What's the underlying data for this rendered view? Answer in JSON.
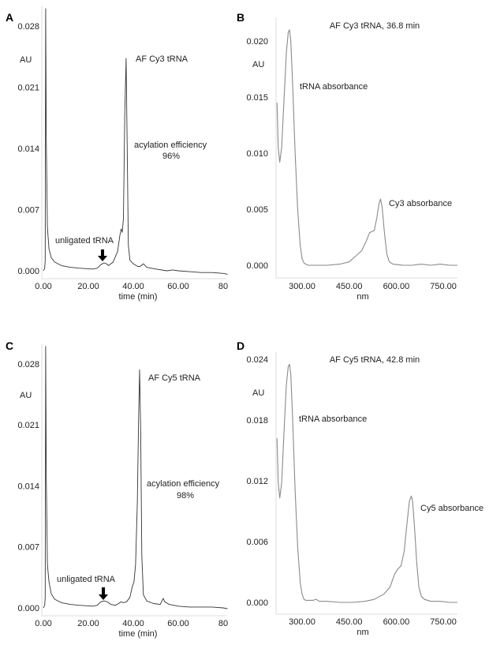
{
  "chart_data": [
    {
      "panel": "A",
      "type": "line",
      "xlabel": "time (min)",
      "ylabel": "AU",
      "xticks": [
        "0.00",
        "20.00",
        "40.00",
        "60.00",
        "80"
      ],
      "xtick_values": [
        0,
        20,
        40,
        60,
        80
      ],
      "yticks": [
        "0.000",
        "0.007",
        "0.014",
        "0.021",
        "0.028"
      ],
      "ytick_values": [
        0,
        0.007,
        0.014,
        0.021,
        0.028
      ],
      "xlim": [
        -0.7,
        81.5
      ],
      "ylim": [
        -0.001,
        0.03
      ],
      "annotations": {
        "peak": "AF Cy3 tRNA",
        "efficiency_label": "acylation efficiency",
        "efficiency_value": "96%",
        "unligated": "unligated tRNA"
      },
      "series": [
        {
          "name": "AF Cy3 tRNA chromatogram",
          "color": "#333333",
          "x": [
            0,
            0.6,
            0.8,
            1.0,
            1.3,
            1.8,
            2.5,
            3.5,
            5,
            8,
            12,
            16,
            22,
            24,
            25.5,
            27,
            28,
            29,
            31,
            33,
            34,
            34.6,
            35.1,
            35.6,
            36.2,
            36.8,
            37.3,
            37.8,
            38.5,
            40,
            42,
            43,
            44.5,
            46,
            50,
            55,
            57.5,
            60,
            65,
            70,
            75,
            80,
            82
          ],
          "y": [
            0,
            0.0003,
            0.0012,
            0.03,
            0.015,
            0.005,
            0.0025,
            0.0015,
            0.001,
            0.0006,
            0.0004,
            0.0003,
            0.0002,
            0.0003,
            0.0007,
            0.0009,
            0.0008,
            0.0006,
            0.001,
            0.0022,
            0.004,
            0.0048,
            0.0044,
            0.006,
            0.018,
            0.0243,
            0.014,
            0.003,
            0.0012,
            0.0008,
            0.0005,
            0.0005,
            0.0008,
            0.0004,
            0.0002,
            0.0,
            0.0001,
            0.0,
            -0.0001,
            -0.0002,
            -0.0002,
            -0.0003,
            -0.0004
          ]
        }
      ]
    },
    {
      "panel": "B",
      "type": "line",
      "title": "AF Cy3 tRNA, 36.8 min",
      "xlabel": "nm",
      "ylabel": "AU",
      "xticks": [
        "300.00",
        "450.00",
        "600.00",
        "750.00"
      ],
      "xtick_values": [
        300,
        450,
        600,
        750
      ],
      "yticks": [
        "0.000",
        "0.005",
        "0.010",
        "0.015",
        "0.020"
      ],
      "ytick_values": [
        0,
        0.005,
        0.01,
        0.015,
        0.02
      ],
      "xlim": [
        217,
        795
      ],
      "ylim": [
        -0.0012,
        0.022
      ],
      "annotations": {
        "uv": "tRNA absorbance",
        "dye": "Cy3 absorbance"
      },
      "series": [
        {
          "name": "AF Cy3 tRNA spectrum",
          "color": "#8a8a8a",
          "x": [
            220,
            224,
            229,
            235,
            242,
            250,
            256,
            260,
            264,
            270,
            278,
            286,
            294,
            300,
            306,
            312,
            320,
            340,
            380,
            420,
            450,
            470,
            490,
            505,
            515,
            522,
            530,
            538,
            545,
            550,
            555,
            562,
            570,
            578,
            590,
            620,
            650,
            680,
            710,
            740,
            770,
            795
          ],
          "y": [
            0.0145,
            0.0105,
            0.0092,
            0.0105,
            0.0145,
            0.019,
            0.0208,
            0.021,
            0.02,
            0.016,
            0.01,
            0.005,
            0.0018,
            0.0006,
            0.0002,
            0.0001,
            0.0,
            0.0,
            0.0,
            0.0001,
            0.0003,
            0.0008,
            0.0013,
            0.0022,
            0.0029,
            0.003,
            0.0031,
            0.0042,
            0.0055,
            0.0059,
            0.0052,
            0.003,
            0.001,
            0.0003,
            0.0001,
            0.0,
            0.0,
            0.0001,
            0.0,
            0.0001,
            0.0,
            0.0
          ]
        }
      ]
    },
    {
      "panel": "C",
      "type": "line",
      "xlabel": "time (min)",
      "ylabel": "AU",
      "xticks": [
        "0.00",
        "20.00",
        "40.00",
        "60.00",
        "80"
      ],
      "xtick_values": [
        0,
        20,
        40,
        60,
        80
      ],
      "yticks": [
        "0.000",
        "0.007",
        "0.014",
        "0.021",
        "0.028"
      ],
      "ytick_values": [
        0,
        0.007,
        0.014,
        0.021,
        0.028
      ],
      "xlim": [
        -0.7,
        81.5
      ],
      "ylim": [
        -0.001,
        0.03
      ],
      "annotations": {
        "peak": "AF Cy5 tRNA",
        "efficiency_label": "acylation efficiency",
        "efficiency_value": "98%",
        "unligated": "unligated tRNA"
      },
      "series": [
        {
          "name": "AF Cy5 tRNA chromatogram",
          "color": "#333333",
          "x": [
            0,
            0.6,
            0.8,
            1.0,
            1.3,
            1.8,
            2.5,
            3.5,
            5,
            8,
            12,
            16,
            22,
            24,
            25.5,
            27,
            28.5,
            30,
            32,
            33.5,
            34.5,
            35.5,
            37,
            38.5,
            39.5,
            40.3,
            41,
            41.8,
            42.4,
            42.8,
            43.3,
            43.8,
            44.5,
            46,
            49,
            52,
            53.3,
            54,
            56,
            60,
            65,
            70,
            75,
            80,
            82
          ],
          "y": [
            0,
            0.0003,
            0.0012,
            0.03,
            0.015,
            0.005,
            0.003,
            0.0016,
            0.001,
            0.0006,
            0.0004,
            0.0003,
            0.0002,
            0.0003,
            0.0007,
            0.0008,
            0.0007,
            0.0004,
            0.0003,
            0.0005,
            0.0007,
            0.0006,
            0.0007,
            0.0012,
            0.0024,
            0.003,
            0.005,
            0.012,
            0.022,
            0.0273,
            0.02,
            0.006,
            0.0015,
            0.0008,
            0.0005,
            0.0004,
            0.0011,
            0.0007,
            0.0004,
            0.0002,
            0.0001,
            0.0001,
            0.0001,
            0.0,
            -0.0001
          ]
        }
      ]
    },
    {
      "panel": "D",
      "type": "line",
      "title": "AF Cy5 tRNA, 42.8 min",
      "xlabel": "nm",
      "ylabel": "AU",
      "xticks": [
        "300.00",
        "450.00",
        "600.00",
        "750.00"
      ],
      "xtick_values": [
        300,
        450,
        600,
        750
      ],
      "yticks": [
        "0.000",
        "0.006",
        "0.012",
        "0.018",
        "0.024"
      ],
      "ytick_values": [
        0,
        0.006,
        0.012,
        0.018,
        0.024
      ],
      "xlim": [
        217,
        795
      ],
      "ylim": [
        -0.0012,
        0.0255
      ],
      "annotations": {
        "uv": "tRNA absorbance",
        "dye": "Cy5 absorbance"
      },
      "series": [
        {
          "name": "AF Cy5 tRNA spectrum",
          "color": "#8a8a8a",
          "x": [
            220,
            224,
            229,
            235,
            242,
            250,
            256,
            260,
            264,
            270,
            278,
            286,
            294,
            300,
            306,
            312,
            320,
            335,
            345,
            355,
            380,
            420,
            460,
            500,
            530,
            560,
            580,
            595,
            605,
            615,
            625,
            635,
            642,
            648,
            652,
            658,
            665,
            672,
            680,
            690,
            710,
            740,
            770,
            795
          ],
          "y": [
            0.0162,
            0.0118,
            0.0103,
            0.0118,
            0.0165,
            0.0215,
            0.0233,
            0.0235,
            0.0225,
            0.018,
            0.011,
            0.0055,
            0.002,
            0.0008,
            0.0003,
            0.0002,
            0.0002,
            0.0002,
            0.0003,
            0.0001,
            0.0001,
            0.0,
            0.0,
            0.0001,
            0.0003,
            0.0008,
            0.0015,
            0.0028,
            0.0033,
            0.0036,
            0.005,
            0.008,
            0.01,
            0.0105,
            0.01,
            0.0075,
            0.004,
            0.0015,
            0.0006,
            0.0003,
            0.0001,
            0.0001,
            0.0,
            0.0
          ]
        }
      ]
    }
  ]
}
